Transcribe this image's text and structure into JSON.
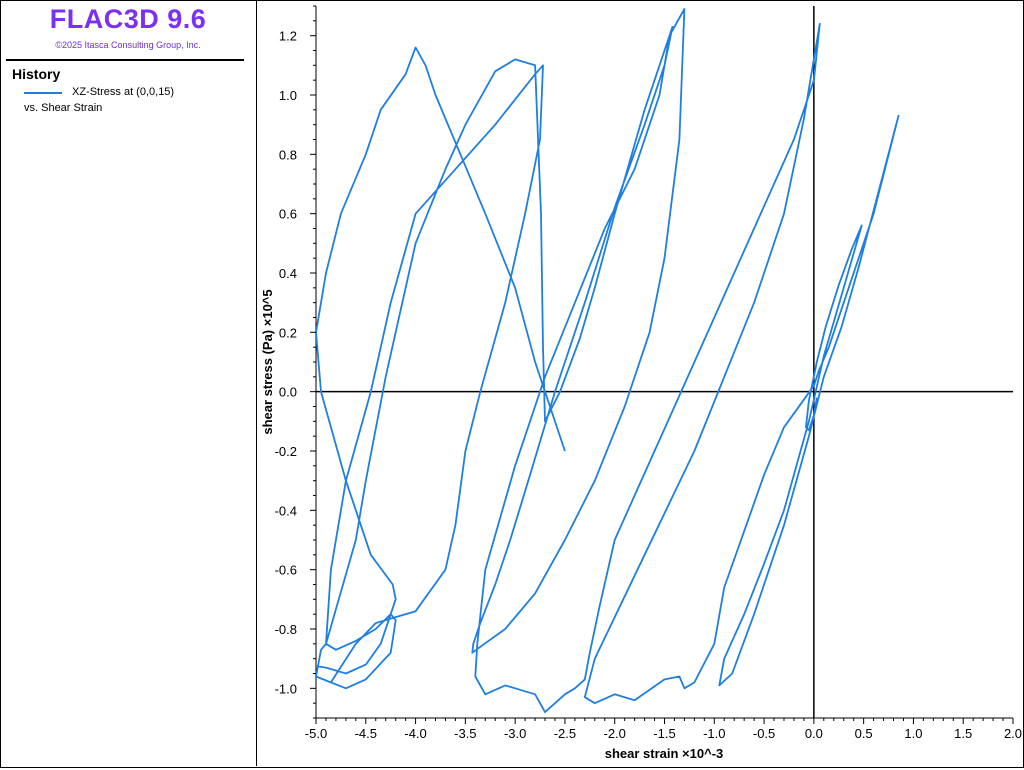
{
  "app": {
    "title": "FLAC3D 9.6",
    "copyright": "©2025 Itasca Consulting Group, Inc."
  },
  "legend": {
    "heading": "History",
    "entry_label": "XZ-Stress at (0,0,15)",
    "entry_sub": "vs. Shear Strain",
    "entry_color": "#1f7fe0"
  },
  "chart_data": {
    "type": "line",
    "xlabel": "shear strain ×10^-3",
    "ylabel": "shear stress (Pa) ×10^5",
    "xlim": [
      -5.0,
      2.0
    ],
    "ylim": [
      -1.1,
      1.3
    ],
    "xticks": [
      "-5.0",
      "-4.5",
      "-4.0",
      "-3.5",
      "-3.0",
      "-2.5",
      "-2.0",
      "-1.5",
      "-1.0",
      "-0.5",
      "0.0",
      "0.5",
      "1.0",
      "1.5",
      "2.0"
    ],
    "yticks": [
      "1.2",
      "1.0",
      "0.8",
      "0.6",
      "0.4",
      "0.2",
      "0.0",
      "-0.2",
      "-0.4",
      "-0.6",
      "-0.8",
      "-1.0"
    ],
    "zero_lines": true,
    "series": [
      {
        "color": "#1f7fe0",
        "x": [
          0.03,
          0.0,
          -0.05,
          -0.08,
          -0.05,
          0.03,
          0.12,
          0.25,
          0.38,
          0.48,
          0.3,
          0.1,
          -0.05,
          -0.15,
          -0.3,
          -0.5,
          -0.7,
          -0.9,
          -0.95,
          -0.82,
          -0.6,
          -0.3,
          -0.05,
          0.1,
          0.28,
          0.45,
          0.85,
          0.6,
          0.35,
          0.15,
          0.05,
          0.0,
          -0.3,
          -0.5,
          -0.7,
          -0.9,
          -1.0,
          -1.2,
          -1.3,
          -1.35,
          -1.5,
          -1.8,
          -2.0,
          -2.2,
          -2.3,
          -2.2,
          -1.7,
          -1.2,
          -0.6,
          -0.3,
          -0.1,
          0.06,
          0.0,
          -0.2,
          -0.6,
          -1.0,
          -1.4,
          -1.8,
          -2.0,
          -2.15,
          -2.25,
          -2.3,
          -2.4,
          -2.5,
          -2.6,
          -2.7,
          -2.8,
          -3.0,
          -3.1,
          -3.3,
          -3.4,
          -3.38,
          -3.3,
          -3.0,
          -2.7,
          -2.4,
          -2.1,
          -1.8,
          -1.55,
          -1.45,
          -1.42,
          -1.5,
          -1.7,
          -2.0,
          -2.3,
          -2.6,
          -2.85,
          -3.05,
          -3.2,
          -3.35,
          -3.42,
          -3.43,
          -3.35,
          -3.1,
          -2.8,
          -2.5,
          -2.2,
          -1.9,
          -1.65,
          -1.5,
          -1.35,
          -1.3,
          -1.45,
          -1.7,
          -2.0,
          -2.2,
          -2.35,
          -2.55,
          -2.7,
          -2.72,
          -2.74,
          -2.8,
          -3.0,
          -3.2,
          -3.5,
          -3.7,
          -4.0,
          -4.3,
          -4.5,
          -4.6,
          -4.9,
          -4.95,
          -5.0,
          -4.85,
          -4.6,
          -4.4,
          -4.2,
          -4.0,
          -3.7,
          -3.6,
          -3.5,
          -3.35,
          -3.1,
          -2.9,
          -2.75,
          -2.72,
          -2.8,
          -3.2,
          -3.6,
          -4.0,
          -4.25,
          -4.45,
          -4.7,
          -4.85,
          -4.9,
          -4.8,
          -4.6,
          -4.4,
          -4.25,
          -4.2,
          -4.25,
          -4.5,
          -4.7,
          -5.0,
          -5.1,
          -4.9,
          -4.7,
          -4.5,
          -4.35,
          -4.28,
          -4.2,
          -4.23,
          -4.45,
          -4.7,
          -4.95,
          -5.0,
          -4.9,
          -4.75,
          -4.5,
          -4.35,
          -4.1,
          -4.0,
          -3.9,
          -3.8,
          -3.55,
          -3.3,
          -3.0,
          -2.8,
          -2.5
        ],
        "y": [
          -0.02,
          -0.08,
          -0.13,
          -0.12,
          -0.03,
          0.1,
          0.22,
          0.36,
          0.48,
          0.56,
          0.35,
          0.12,
          -0.1,
          -0.22,
          -0.4,
          -0.58,
          -0.75,
          -0.9,
          -0.99,
          -0.95,
          -0.75,
          -0.45,
          -0.15,
          0.05,
          0.22,
          0.42,
          0.93,
          0.6,
          0.35,
          0.15,
          0.07,
          0.02,
          -0.12,
          -0.28,
          -0.47,
          -0.66,
          -0.85,
          -0.98,
          -1.0,
          -0.96,
          -0.97,
          -1.04,
          -1.02,
          -1.05,
          -1.03,
          -0.9,
          -0.55,
          -0.2,
          0.3,
          0.6,
          0.92,
          1.24,
          1.05,
          0.85,
          0.55,
          0.25,
          -0.05,
          -0.35,
          -0.5,
          -0.72,
          -0.88,
          -0.97,
          -1.0,
          -1.02,
          -1.05,
          -1.08,
          -1.02,
          -1.0,
          -0.99,
          -1.02,
          -0.96,
          -0.85,
          -0.6,
          -0.25,
          0.05,
          0.3,
          0.55,
          0.75,
          1.0,
          1.2,
          1.23,
          1.1,
          0.9,
          0.62,
          0.3,
          0.0,
          -0.28,
          -0.5,
          -0.65,
          -0.78,
          -0.85,
          -0.88,
          -0.86,
          -0.8,
          -0.68,
          -0.5,
          -0.3,
          -0.05,
          0.2,
          0.45,
          0.85,
          1.29,
          1.2,
          0.95,
          0.6,
          0.35,
          0.18,
          0.0,
          -0.1,
          0.15,
          0.6,
          1.1,
          1.12,
          1.08,
          0.9,
          0.75,
          0.5,
          0.05,
          -0.3,
          -0.5,
          -0.85,
          -0.87,
          -0.96,
          -0.98,
          -0.85,
          -0.78,
          -0.76,
          -0.74,
          -0.6,
          -0.45,
          -0.2,
          0.0,
          0.3,
          0.6,
          0.85,
          1.1,
          1.07,
          0.9,
          0.75,
          0.6,
          0.3,
          0.0,
          -0.3,
          -0.6,
          -0.85,
          -0.87,
          -0.84,
          -0.8,
          -0.75,
          -0.77,
          -0.88,
          -0.97,
          -1.0,
          -0.96,
          -0.92,
          -0.93,
          -0.95,
          -0.92,
          -0.85,
          -0.78,
          -0.7,
          -0.65,
          -0.55,
          -0.3,
          0.0,
          0.2,
          0.4,
          0.6,
          0.8,
          0.95,
          1.07,
          1.16,
          1.1,
          1.0,
          0.8,
          0.6,
          0.35,
          0.1,
          -0.2
        ]
      }
    ]
  }
}
